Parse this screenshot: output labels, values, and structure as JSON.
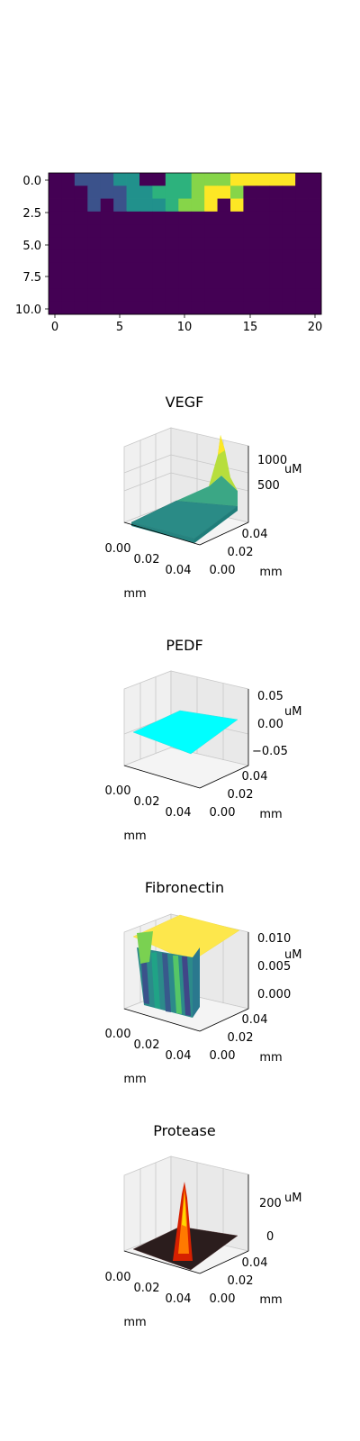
{
  "chart_data": [
    {
      "type": "heatmap",
      "title": "",
      "colormap": "viridis",
      "x_ticks": [
        "0",
        "5",
        "10",
        "15",
        "20"
      ],
      "y_ticks": [
        "0.0",
        "2.5",
        "5.0",
        "7.5",
        "10.0"
      ],
      "xlim": [
        -0.5,
        20.5
      ],
      "ylim": [
        10.5,
        -0.5
      ],
      "grid_rows": 11,
      "grid_cols": 21,
      "values": [
        [
          0,
          0,
          1,
          1,
          1,
          2,
          2,
          0,
          0,
          3,
          3,
          4,
          4,
          4,
          5,
          5,
          5,
          5,
          5,
          0,
          0
        ],
        [
          0,
          0,
          0,
          1,
          1,
          1,
          2,
          2,
          3,
          3,
          3,
          4,
          5,
          5,
          4,
          0,
          0,
          0,
          0,
          0,
          0
        ],
        [
          0,
          0,
          0,
          1,
          0,
          1,
          2,
          2,
          2,
          3,
          4,
          4,
          5,
          0,
          5,
          0,
          0,
          0,
          0,
          0,
          0
        ],
        [
          0,
          0,
          0,
          0,
          0,
          0,
          0,
          0,
          0,
          0,
          0,
          0,
          0,
          0,
          0,
          0,
          0,
          0,
          0,
          0,
          0
        ],
        [
          0,
          0,
          0,
          0,
          0,
          0,
          0,
          0,
          0,
          0,
          0,
          0,
          0,
          0,
          0,
          0,
          0,
          0,
          0,
          0,
          0
        ],
        [
          0,
          0,
          0,
          0,
          0,
          0,
          0,
          0,
          0,
          0,
          0,
          0,
          0,
          0,
          0,
          0,
          0,
          0,
          0,
          0,
          0
        ],
        [
          0,
          0,
          0,
          0,
          0,
          0,
          0,
          0,
          0,
          0,
          0,
          0,
          0,
          0,
          0,
          0,
          0,
          0,
          0,
          0,
          0
        ],
        [
          0,
          0,
          0,
          0,
          0,
          0,
          0,
          0,
          0,
          0,
          0,
          0,
          0,
          0,
          0,
          0,
          0,
          0,
          0,
          0,
          0
        ],
        [
          0,
          0,
          0,
          0,
          0,
          0,
          0,
          0,
          0,
          0,
          0,
          0,
          0,
          0,
          0,
          0,
          0,
          0,
          0,
          0,
          0
        ],
        [
          0,
          0,
          0,
          0,
          0,
          0,
          0,
          0,
          0,
          0,
          0,
          0,
          0,
          0,
          0,
          0,
          0,
          0,
          0,
          0,
          0
        ],
        [
          0,
          0,
          0,
          0,
          0,
          0,
          0,
          0,
          0,
          0,
          0,
          0,
          0,
          0,
          0,
          0,
          0,
          0,
          0,
          0,
          0
        ]
      ],
      "colors": [
        "#440154",
        "#3b528b",
        "#21918c",
        "#2db27d",
        "#86d549",
        "#fde725"
      ]
    },
    {
      "type": "surface",
      "title": "VEGF",
      "xlabel": "mm",
      "ylabel": "mm",
      "zlabel": "uM",
      "x_ticks": [
        "0.00",
        "0.02",
        "0.04"
      ],
      "y_ticks": [
        "0.00",
        "0.02",
        "0.04"
      ],
      "z_ticks": [
        "500",
        "1000"
      ],
      "zlim": [
        0,
        1200
      ],
      "colormap": "viridis",
      "description_peak": {
        "x": 0.05,
        "y": 0.05,
        "z": 1100
      }
    },
    {
      "type": "surface",
      "title": "PEDF",
      "xlabel": "mm",
      "ylabel": "mm",
      "zlabel": "uM",
      "x_ticks": [
        "0.00",
        "0.02",
        "0.04"
      ],
      "y_ticks": [
        "0.00",
        "0.02",
        "0.04"
      ],
      "z_ticks": [
        "0.05",
        "0.00",
        "−0.05"
      ],
      "zlim": [
        -0.05,
        0.05
      ],
      "color": "#00ffff",
      "value": 0
    },
    {
      "type": "surface",
      "title": "Fibronectin",
      "xlabel": "mm",
      "ylabel": "mm",
      "zlabel": "uM",
      "x_ticks": [
        "0.00",
        "0.02",
        "0.04"
      ],
      "y_ticks": [
        "0.00",
        "0.02",
        "0.04"
      ],
      "z_ticks": [
        "0.010",
        "0.005",
        "0.000"
      ],
      "zlim": [
        0,
        0.01
      ],
      "colormap": "viridis",
      "plateau": 0.01
    },
    {
      "type": "surface",
      "title": "Protease",
      "xlabel": "mm",
      "ylabel": "mm",
      "zlabel": "uM",
      "x_ticks": [
        "0.00",
        "0.02",
        "0.04"
      ],
      "y_ticks": [
        "0.00",
        "0.02",
        "0.04"
      ],
      "z_ticks": [
        "200",
        "0"
      ],
      "zlim": [
        0,
        300
      ],
      "colormap": "hot",
      "peak": 280
    }
  ]
}
